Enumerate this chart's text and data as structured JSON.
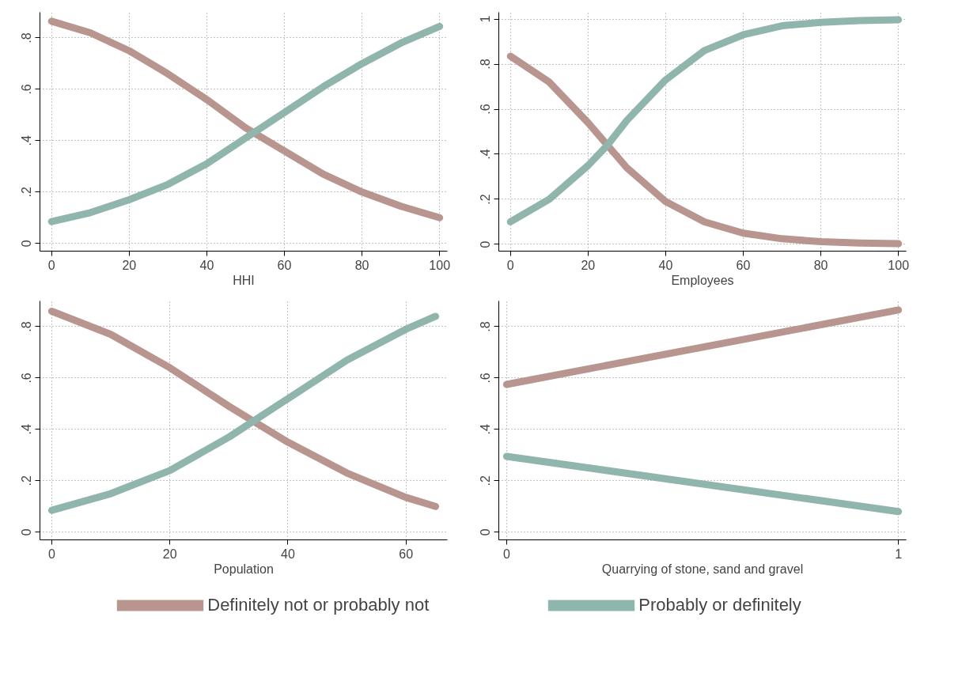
{
  "chart_data": [
    {
      "type": "line",
      "xlabel": "HHI",
      "x": [
        0,
        10,
        20,
        30,
        40,
        50,
        60,
        70,
        80,
        90,
        100
      ],
      "xlim": [
        -3,
        102
      ],
      "xticks": [
        0,
        20,
        40,
        60,
        80,
        100
      ],
      "ylim": [
        -0.03,
        0.9
      ],
      "yticks": [
        {
          "value": 0,
          "label": "0"
        },
        {
          "value": 0.2,
          "label": ".2"
        },
        {
          "value": 0.4,
          "label": ".4"
        },
        {
          "value": 0.6,
          "label": ".6"
        },
        {
          "value": 0.8,
          "label": ".8"
        }
      ],
      "grid": true,
      "legend": "bottom",
      "series": [
        {
          "name": "Definitely not or probably not",
          "color": "#b99590",
          "values": [
            0.865,
            0.82,
            0.75,
            0.66,
            0.56,
            0.45,
            0.36,
            0.27,
            0.2,
            0.145,
            0.1
          ]
        },
        {
          "name": "Probably or definitely",
          "color": "#90b5ad",
          "values": [
            0.085,
            0.12,
            0.17,
            0.23,
            0.31,
            0.41,
            0.51,
            0.61,
            0.7,
            0.78,
            0.845
          ]
        }
      ]
    },
    {
      "type": "line",
      "xlabel": "Employees",
      "x": [
        0,
        10,
        20,
        25,
        30,
        40,
        50,
        60,
        70,
        80,
        90,
        100
      ],
      "xlim": [
        -3,
        102
      ],
      "xticks": [
        0,
        20,
        40,
        60,
        80,
        100
      ],
      "ylim": [
        -0.03,
        1.03
      ],
      "yticks": [
        {
          "value": 0,
          "label": "0"
        },
        {
          "value": 0.2,
          "label": ".2"
        },
        {
          "value": 0.4,
          "label": ".4"
        },
        {
          "value": 0.6,
          "label": ".6"
        },
        {
          "value": 0.8,
          "label": ".8"
        },
        {
          "value": 1,
          "label": "1"
        }
      ],
      "grid": true,
      "series": [
        {
          "color": "#b99590",
          "values": [
            0.835,
            0.72,
            0.54,
            0.44,
            0.34,
            0.19,
            0.1,
            0.05,
            0.025,
            0.012,
            0.006,
            0.003
          ]
        },
        {
          "color": "#90b5ad",
          "values": [
            0.1,
            0.2,
            0.35,
            0.44,
            0.55,
            0.73,
            0.86,
            0.93,
            0.97,
            0.985,
            0.993,
            0.997
          ]
        }
      ]
    },
    {
      "type": "line",
      "xlabel": "Population",
      "x": [
        0,
        10,
        20,
        30,
        40,
        50,
        60,
        65
      ],
      "xlim": [
        -2,
        67
      ],
      "xticks": [
        0,
        20,
        40,
        60
      ],
      "ylim": [
        -0.03,
        0.9
      ],
      "yticks": [
        {
          "value": 0,
          "label": "0"
        },
        {
          "value": 0.2,
          "label": ".2"
        },
        {
          "value": 0.4,
          "label": ".4"
        },
        {
          "value": 0.6,
          "label": ".6"
        },
        {
          "value": 0.8,
          "label": ".8"
        }
      ],
      "grid": true,
      "series": [
        {
          "color": "#b99590",
          "values": [
            0.86,
            0.77,
            0.64,
            0.49,
            0.35,
            0.23,
            0.135,
            0.1
          ]
        },
        {
          "color": "#90b5ad",
          "values": [
            0.085,
            0.15,
            0.24,
            0.37,
            0.52,
            0.67,
            0.79,
            0.84
          ]
        }
      ]
    },
    {
      "type": "line",
      "xlabel": "Quarrying of stone, sand and gravel",
      "x": [
        0,
        1
      ],
      "xlim": [
        -0.02,
        1.02
      ],
      "xticks": [
        0,
        1
      ],
      "ylim": [
        -0.03,
        0.9
      ],
      "yticks": [
        {
          "value": 0,
          "label": "0"
        },
        {
          "value": 0.2,
          "label": ".2"
        },
        {
          "value": 0.4,
          "label": ".4"
        },
        {
          "value": 0.6,
          "label": ".6"
        },
        {
          "value": 0.8,
          "label": ".8"
        }
      ],
      "grid": true,
      "series": [
        {
          "color": "#b99590",
          "values": [
            0.575,
            0.865
          ]
        },
        {
          "color": "#90b5ad",
          "values": [
            0.295,
            0.08
          ]
        }
      ]
    }
  ]
}
